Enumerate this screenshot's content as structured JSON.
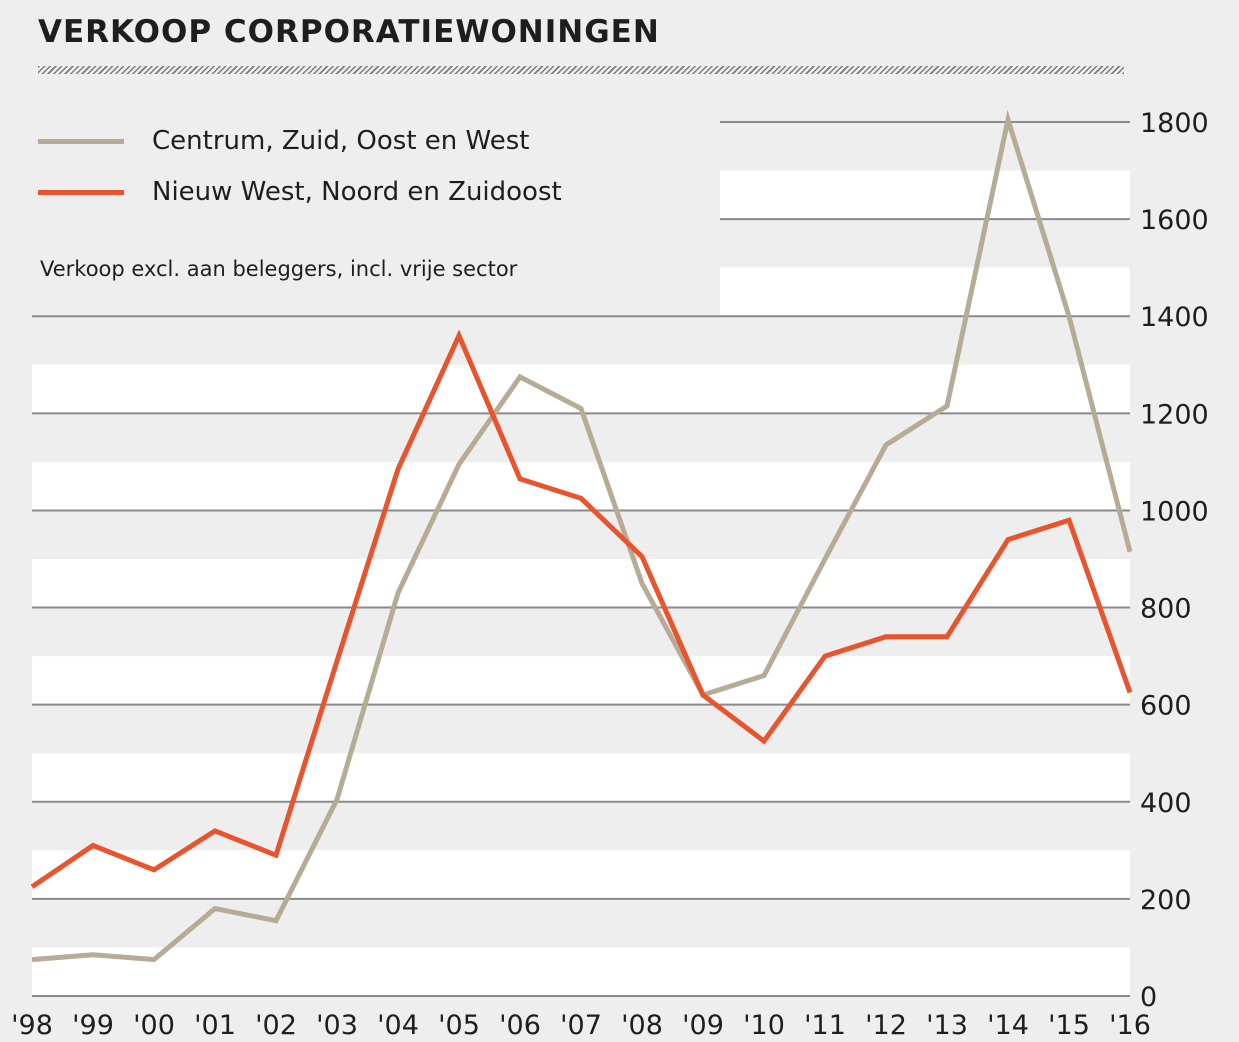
{
  "chart_data": {
    "type": "line",
    "title": "VERKOOP CORPORATIEWONINGEN",
    "annotation": "Verkoop excl. aan beleggers, incl. vrije sector",
    "x": [
      "'98",
      "'99",
      "'00",
      "'01",
      "'02",
      "'03",
      "'04",
      "'05",
      "'06",
      "'07",
      "'08",
      "'09",
      "'10",
      "'11",
      "'12",
      "'13",
      "'14",
      "'15",
      "'16"
    ],
    "series": [
      {
        "name": "Centrum, Zuid, Oost en West",
        "color": "#b8ab96",
        "values": [
          75,
          85,
          75,
          180,
          155,
          405,
          830,
          1095,
          1275,
          1210,
          850,
          620,
          660,
          900,
          1135,
          1215,
          1805,
          1400,
          915
        ]
      },
      {
        "name": "Nieuw West, Noord en Zuidoost",
        "color": "#e8542e",
        "values": [
          225,
          310,
          260,
          340,
          290,
          690,
          1085,
          1360,
          1065,
          1025,
          905,
          620,
          525,
          700,
          740,
          740,
          940,
          980,
          625
        ]
      }
    ],
    "yticks": [
      0,
      200,
      400,
      600,
      800,
      1000,
      1200,
      1400,
      1600,
      1800
    ],
    "ylim": [
      0,
      1800
    ],
    "y_axis_side": "right",
    "legend_position": "top-left",
    "grid": true
  }
}
